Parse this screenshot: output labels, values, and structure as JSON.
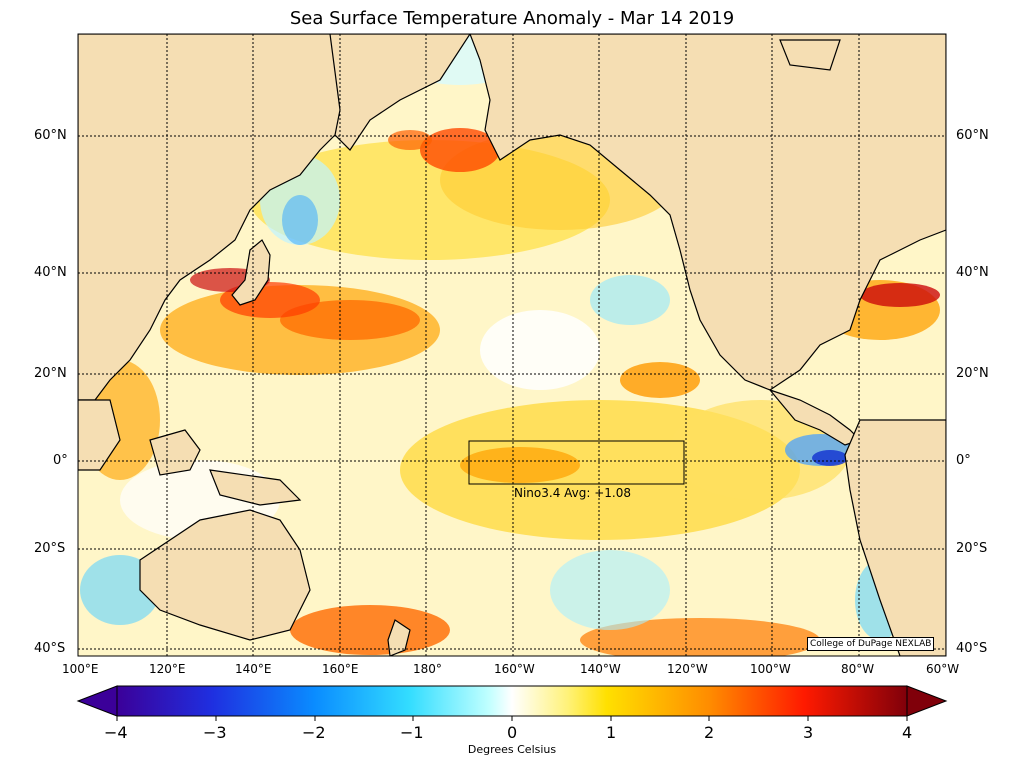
{
  "title": "Sea Surface Temperature Anomaly - Mar 14 2019",
  "credit": "College of DuPage NEXLAB",
  "nino_box_label": "Nino3.4 Avg: +1.08",
  "lat_labels_left": [
    "60°N",
    "40°N",
    "20°N",
    "0°",
    "20°S",
    "40°S"
  ],
  "lat_labels_right": [
    "60°N",
    "40°N",
    "20°N",
    "0°",
    "20°S",
    "40°S"
  ],
  "lon_labels": [
    "100°E",
    "120°E",
    "140°E",
    "160°E",
    "180°",
    "160°W",
    "140°W",
    "120°W",
    "100°W",
    "80°W",
    "60°W"
  ],
  "colorbar": {
    "ticks": [
      "−4",
      "−3",
      "−2",
      "−1",
      "0",
      "1",
      "2",
      "3",
      "4"
    ],
    "label": "Degrees Celsius",
    "colors": [
      "#3b0099",
      "#1f2fe0",
      "#0066ff",
      "#00b4ff",
      "#7fffff",
      "#ffffff",
      "#fff04a",
      "#ffc000",
      "#ff7a00",
      "#ff1a00",
      "#b3000c",
      "#80000a"
    ]
  },
  "colors": {
    "land": "#f5deb3",
    "ocean_neutral": "#ffffff",
    "warm": "#ffd24a",
    "cold": "#7fdfff"
  }
}
